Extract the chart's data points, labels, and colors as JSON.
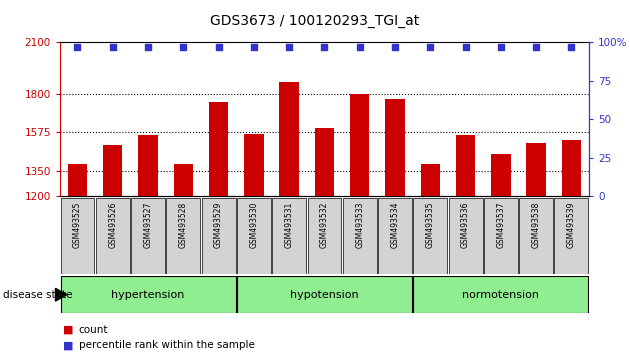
{
  "title": "GDS3673 / 100120293_TGI_at",
  "samples": [
    "GSM493525",
    "GSM493526",
    "GSM493527",
    "GSM493528",
    "GSM493529",
    "GSM493530",
    "GSM493531",
    "GSM493532",
    "GSM493533",
    "GSM493534",
    "GSM493535",
    "GSM493536",
    "GSM493537",
    "GSM493538",
    "GSM493539"
  ],
  "counts": [
    1390,
    1500,
    1560,
    1390,
    1750,
    1565,
    1870,
    1600,
    1800,
    1770,
    1390,
    1560,
    1450,
    1510,
    1530
  ],
  "percentiles": [
    97,
    97,
    97,
    97,
    97,
    97,
    97,
    97,
    97,
    97,
    97,
    97,
    97,
    97,
    97
  ],
  "bar_color": "#cc0000",
  "dot_color": "#3333cc",
  "ymin": 1200,
  "ymax": 2100,
  "yticks_left": [
    1200,
    1350,
    1575,
    1800,
    2100
  ],
  "yticks_right": [
    0,
    25,
    50,
    75,
    100
  ],
  "grid_lines": [
    1350,
    1575,
    1800
  ],
  "legend_count_label": "count",
  "legend_percentile_label": "percentile rank within the sample",
  "disease_state_label": "disease state",
  "tick_label_bg": "#d3d3d3",
  "group_bg": "#90EE90",
  "plot_bg": "#ffffff",
  "outer_bg": "#ffffff",
  "groups": [
    {
      "label": "hypertension",
      "start": 0,
      "end": 4
    },
    {
      "label": "hypotension",
      "start": 5,
      "end": 9
    },
    {
      "label": "normotension",
      "start": 10,
      "end": 14
    }
  ]
}
